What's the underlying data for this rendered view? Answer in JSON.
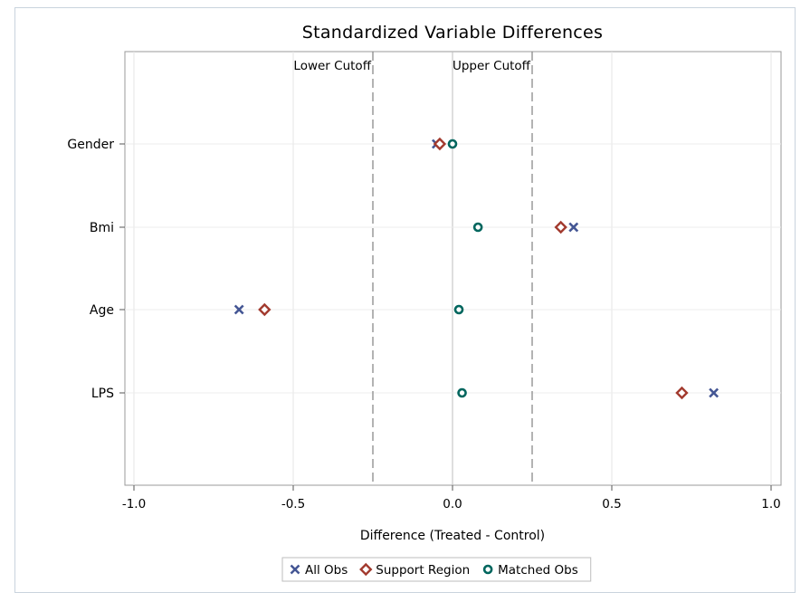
{
  "chart_data": {
    "type": "scatter",
    "title": "Standardized Variable Differences",
    "xlabel": "Difference (Treated - Control)",
    "ylabel": "",
    "xlim": [
      -1.0,
      1.0
    ],
    "xticks": [
      -1.0,
      -0.5,
      0.0,
      0.5,
      1.0
    ],
    "xtick_labels": [
      "-1.0",
      "-0.5",
      "0.0",
      "0.5",
      "1.0"
    ],
    "categories": [
      "Gender",
      "Bmi",
      "Age",
      "LPS"
    ],
    "grid": true,
    "legend": "bottom",
    "reference_lines": [
      {
        "value": -0.25,
        "label": "Lower Cutoff",
        "style": "dashed"
      },
      {
        "value": 0.25,
        "label": "Upper Cutoff",
        "style": "dashed"
      }
    ],
    "series": [
      {
        "name": "All Obs",
        "marker": "x-icon",
        "color": "#445694",
        "values": [
          -0.05,
          0.38,
          -0.67,
          0.82
        ]
      },
      {
        "name": "Support Region",
        "marker": "diamond-icon",
        "color": "#a23a2e",
        "values": [
          -0.04,
          0.34,
          -0.59,
          0.72
        ]
      },
      {
        "name": "Matched Obs",
        "marker": "circle-icon",
        "color": "#01665e",
        "values": [
          0.0,
          0.08,
          0.02,
          0.03
        ]
      }
    ]
  }
}
